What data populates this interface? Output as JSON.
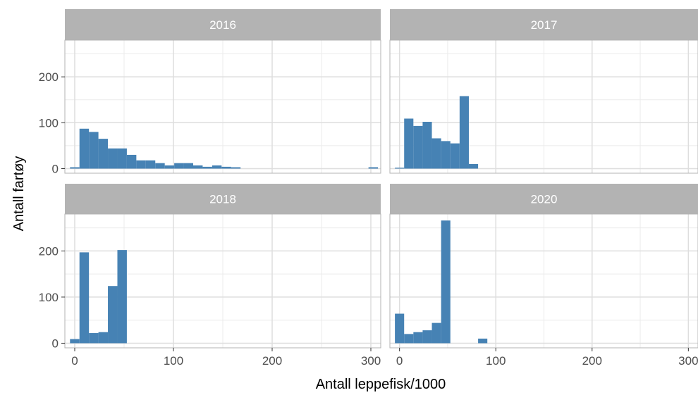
{
  "chart_data": {
    "type": "bar",
    "xlabel": "Antall leppefisk/1000",
    "ylabel": "Antall fartøy",
    "xlim": [
      -10,
      310
    ],
    "ylim": [
      -10,
      280
    ],
    "xticks": [
      0,
      100,
      200,
      300
    ],
    "yticks": [
      0,
      100,
      200
    ],
    "bin_width": 9.6,
    "bar_color": "#4682B4",
    "panel_background": "#ffffff",
    "grid": true,
    "facet_layout": "2x2",
    "panels": [
      {
        "label": "2016",
        "bins": [
          {
            "x": -4.8,
            "y": 3
          },
          {
            "x": 4.8,
            "y": 87
          },
          {
            "x": 14.4,
            "y": 80
          },
          {
            "x": 24.0,
            "y": 65
          },
          {
            "x": 33.6,
            "y": 44
          },
          {
            "x": 43.2,
            "y": 44
          },
          {
            "x": 52.8,
            "y": 30
          },
          {
            "x": 62.4,
            "y": 18
          },
          {
            "x": 72.0,
            "y": 18
          },
          {
            "x": 81.6,
            "y": 12
          },
          {
            "x": 91.2,
            "y": 7
          },
          {
            "x": 100.8,
            "y": 12
          },
          {
            "x": 110.4,
            "y": 12
          },
          {
            "x": 120.0,
            "y": 7
          },
          {
            "x": 129.6,
            "y": 4
          },
          {
            "x": 139.2,
            "y": 7
          },
          {
            "x": 148.8,
            "y": 4
          },
          {
            "x": 158.4,
            "y": 3
          },
          {
            "x": 297.6,
            "y": 3
          }
        ]
      },
      {
        "label": "2017",
        "bins": [
          {
            "x": -4.8,
            "y": 2
          },
          {
            "x": 4.8,
            "y": 109
          },
          {
            "x": 14.4,
            "y": 93
          },
          {
            "x": 24.0,
            "y": 102
          },
          {
            "x": 33.6,
            "y": 66
          },
          {
            "x": 43.2,
            "y": 60
          },
          {
            "x": 52.8,
            "y": 55
          },
          {
            "x": 62.4,
            "y": 158
          },
          {
            "x": 72.0,
            "y": 10
          }
        ]
      },
      {
        "label": "2018",
        "bins": [
          {
            "x": -4.8,
            "y": 9
          },
          {
            "x": 4.8,
            "y": 197
          },
          {
            "x": 14.4,
            "y": 22
          },
          {
            "x": 24.0,
            "y": 24
          },
          {
            "x": 33.6,
            "y": 124
          },
          {
            "x": 43.2,
            "y": 202
          }
        ]
      },
      {
        "label": "2020",
        "bins": [
          {
            "x": -4.8,
            "y": 64
          },
          {
            "x": 4.8,
            "y": 20
          },
          {
            "x": 14.4,
            "y": 24
          },
          {
            "x": 24.0,
            "y": 28
          },
          {
            "x": 33.6,
            "y": 44
          },
          {
            "x": 43.2,
            "y": 266
          },
          {
            "x": 81.6,
            "y": 10
          }
        ]
      }
    ]
  }
}
